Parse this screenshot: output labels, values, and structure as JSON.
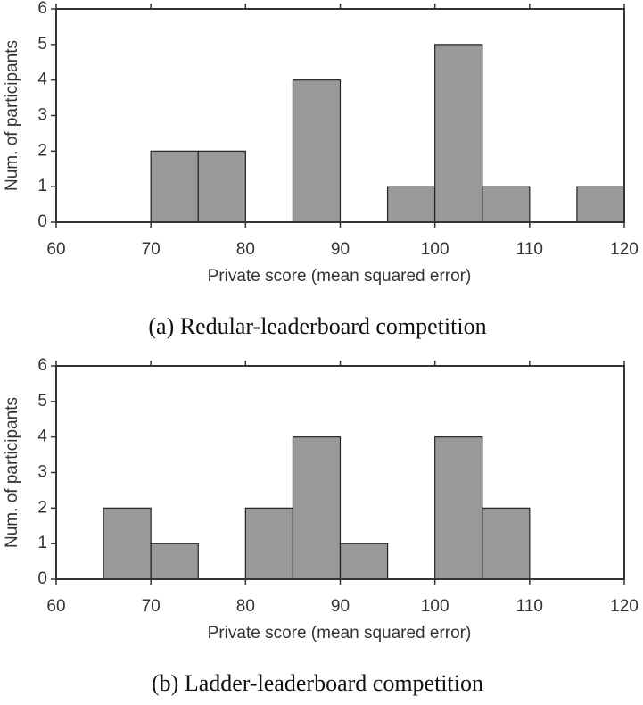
{
  "chart_data": [
    {
      "type": "histogram",
      "caption": "(a) Redular-leaderboard competition",
      "xlabel": "Private score (mean squared error)",
      "ylabel": "Num. of participants",
      "bins": [
        60,
        65,
        70,
        75,
        80,
        85,
        90,
        95,
        100,
        105,
        110,
        115,
        120
      ],
      "values": [
        0,
        0,
        2,
        2,
        0,
        4,
        0,
        1,
        5,
        1,
        0,
        1
      ],
      "color": "#999999",
      "xlim": [
        60,
        120
      ],
      "xticks": [
        60,
        70,
        80,
        90,
        100,
        110,
        120
      ],
      "ylim": [
        0,
        6
      ],
      "yticks": [
        0,
        1,
        2,
        3,
        4,
        5,
        6
      ]
    },
    {
      "type": "histogram",
      "caption": "(b) Ladder-leaderboard competition",
      "xlabel": "Private score (mean squared error)",
      "ylabel": "Num. of participants",
      "bins": [
        60,
        65,
        70,
        75,
        80,
        85,
        90,
        95,
        100,
        105,
        110,
        115,
        120
      ],
      "values": [
        0,
        2,
        1,
        0,
        2,
        4,
        1,
        0,
        4,
        2,
        0,
        0
      ],
      "color": "#999999",
      "xlim": [
        60,
        120
      ],
      "xticks": [
        60,
        70,
        80,
        90,
        100,
        110,
        120
      ],
      "ylim": [
        0,
        6
      ],
      "yticks": [
        0,
        1,
        2,
        3,
        4,
        5,
        6
      ]
    }
  ]
}
